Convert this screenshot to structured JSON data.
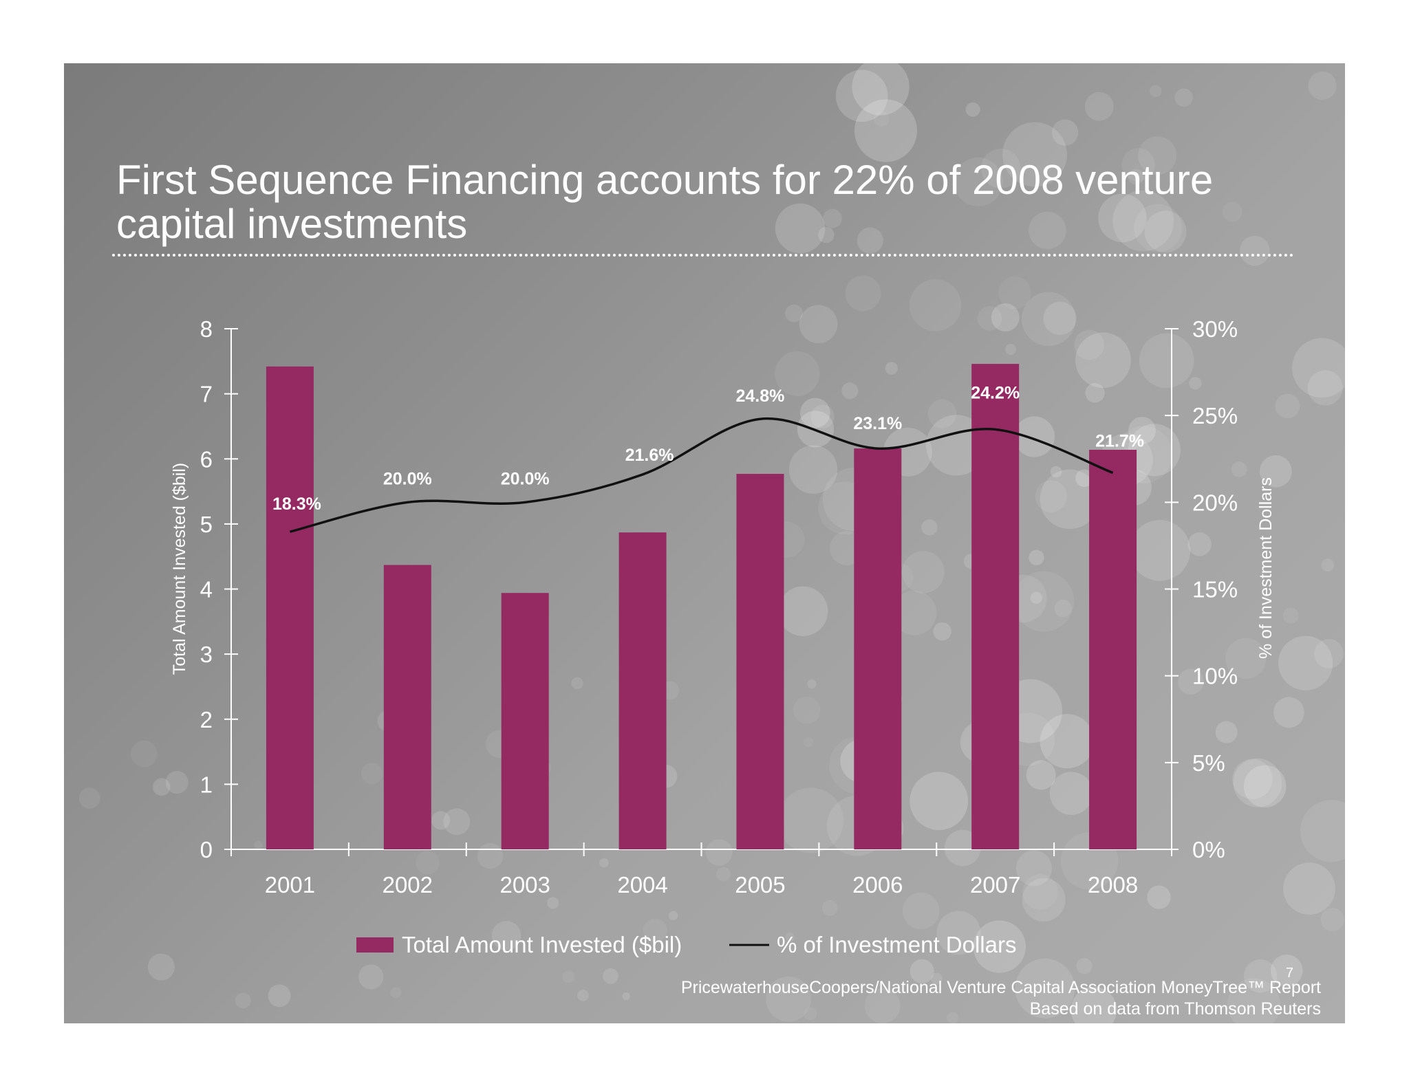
{
  "slide": {
    "title": "First Sequence Financing accounts for 22% of 2008 venture capital investments",
    "page_number": "7",
    "source_line1": "PricewaterhouseCoopers/National Venture Capital Association MoneyTree™ Report",
    "source_line2": "Based on data from Thomson Reuters"
  },
  "chart_data": {
    "type": "bar",
    "categories": [
      "2001",
      "2002",
      "2003",
      "2004",
      "2005",
      "2006",
      "2007",
      "2008"
    ],
    "series": [
      {
        "name": "Total Amount Invested ($bil)",
        "type": "bar",
        "axis": "left",
        "color": "#952a62",
        "values": [
          7.42,
          4.37,
          3.94,
          4.87,
          5.77,
          6.16,
          7.46,
          6.14
        ]
      },
      {
        "name": "% of Investment Dollars",
        "type": "line",
        "axis": "right",
        "color": "#111111",
        "values": [
          18.3,
          20.0,
          20.0,
          21.6,
          24.8,
          23.1,
          24.2,
          21.7
        ],
        "labels": [
          "18.3%",
          "20.0%",
          "20.0%",
          "21.6%",
          "24.8%",
          "23.1%",
          "24.2%",
          "21.7%"
        ]
      }
    ],
    "ylabel": "Total Amount Invested ($bil)",
    "ylim": [
      0,
      8
    ],
    "yticks": [
      "0",
      "1",
      "2",
      "3",
      "4",
      "5",
      "6",
      "7",
      "8"
    ],
    "y2label": "% of Investment Dollars",
    "y2lim": [
      0,
      30
    ],
    "y2ticks": [
      "0%",
      "5%",
      "10%",
      "15%",
      "20%",
      "25%",
      "30%"
    ],
    "grid": false,
    "legend": "bottom"
  }
}
